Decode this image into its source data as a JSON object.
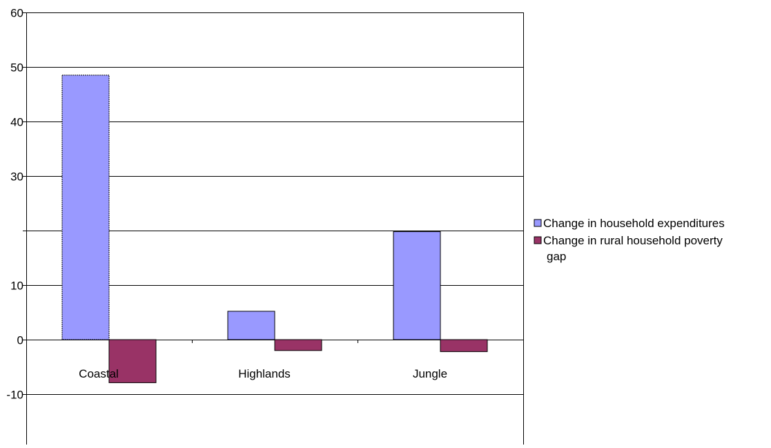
{
  "chart_data": {
    "type": "bar",
    "categories": [
      "Coastal",
      "Highlands",
      "Jungle"
    ],
    "series": [
      {
        "name": "Change in household expenditures",
        "values": [
          48.5,
          5.2,
          19.8
        ],
        "color": "#9999ff"
      },
      {
        "name": "Change in rural household poverty gap",
        "values": [
          -7.9,
          -2.0,
          -2.2
        ],
        "color": "#993366"
      }
    ],
    "y_tick_labels": [
      "60",
      "50",
      "40",
      "30",
      "",
      "10",
      "0",
      "-10"
    ],
    "ylim": [
      -17,
      60
    ],
    "grid": true,
    "legend_position": "right",
    "title": "",
    "xlabel": "",
    "ylabel": ""
  },
  "legend": {
    "line1": "Change in household expenditures",
    "line2a": "Change in rural household poverty",
    "line2b": "gap"
  }
}
